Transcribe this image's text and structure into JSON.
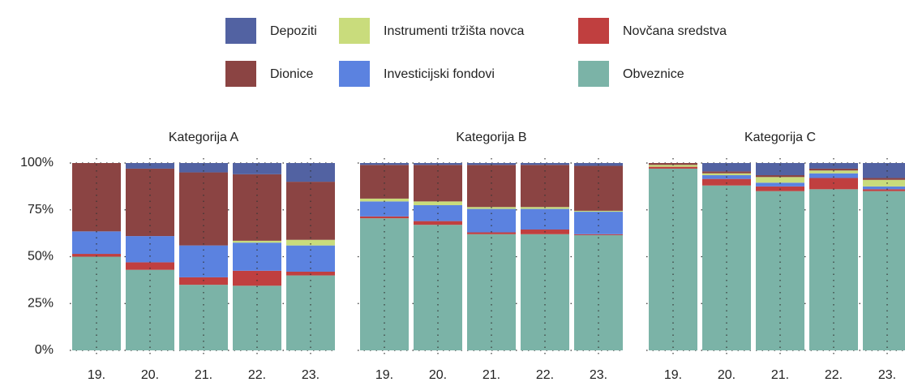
{
  "chart_data": [
    {
      "type": "bar",
      "title": "Kategorija A",
      "categories": [
        "19.",
        "20.",
        "21.",
        "22.",
        "23."
      ],
      "ylim": [
        0,
        100
      ],
      "yticks": [
        {
          "value": 0,
          "label": "0%"
        },
        {
          "value": 25,
          "label": "25%"
        },
        {
          "value": 50,
          "label": "50%"
        },
        {
          "value": 75,
          "label": "75%"
        },
        {
          "value": 100,
          "label": "100%"
        }
      ],
      "grid": true,
      "series": [
        {
          "name": "Depoziti",
          "color": "#5262a2",
          "values": [
            0,
            3,
            5,
            6,
            10
          ]
        },
        {
          "name": "Dionice",
          "color": "#8b4443",
          "values": [
            36.5,
            36,
            39,
            35.5,
            31
          ]
        },
        {
          "name": "Instrumenti tržišta novca",
          "color": "#c9dc7c",
          "values": [
            0,
            0,
            0,
            1,
            3
          ]
        },
        {
          "name": "Investicijski fondovi",
          "color": "#5b82e0",
          "values": [
            12,
            14,
            17,
            15,
            14
          ]
        },
        {
          "name": "Novčana sredstva",
          "color": "#c03f3f",
          "values": [
            1.5,
            4,
            4,
            8,
            2
          ]
        },
        {
          "name": "Obveznice",
          "color": "#7bb3a7",
          "values": [
            50,
            43,
            35,
            34.5,
            40
          ]
        }
      ]
    },
    {
      "type": "bar",
      "title": "Kategorija B",
      "categories": [
        "19.",
        "20.",
        "21.",
        "22.",
        "23."
      ],
      "ylim": [
        0,
        100
      ],
      "grid": true,
      "series": [
        {
          "name": "Depoziti",
          "color": "#5262a2",
          "values": [
            1,
            1,
            1,
            1,
            1.5
          ]
        },
        {
          "name": "Dionice",
          "color": "#8b4443",
          "values": [
            18,
            19.5,
            22.5,
            22.5,
            24
          ]
        },
        {
          "name": "Instrumenti tržišta novca",
          "color": "#c9dc7c",
          "values": [
            1.5,
            2,
            1,
            1,
            0.5
          ]
        },
        {
          "name": "Investicijski fondovi",
          "color": "#5b82e0",
          "values": [
            8,
            8.5,
            12.5,
            11,
            12
          ]
        },
        {
          "name": "Novčana sredstva",
          "color": "#c03f3f",
          "values": [
            1,
            2,
            1,
            2.5,
            0.5
          ]
        },
        {
          "name": "Obveznice",
          "color": "#7bb3a7",
          "values": [
            70.5,
            67,
            62,
            62,
            61.5
          ]
        }
      ]
    },
    {
      "type": "bar",
      "title": "Kategorija C",
      "categories": [
        "19.",
        "20.",
        "21.",
        "22.",
        "23."
      ],
      "ylim": [
        0,
        100
      ],
      "grid": true,
      "series": [
        {
          "name": "Depoziti",
          "color": "#5262a2",
          "values": [
            0,
            4.5,
            6.5,
            3,
            8
          ]
        },
        {
          "name": "Dionice",
          "color": "#8b4443",
          "values": [
            1,
            1,
            1,
            1,
            1
          ]
        },
        {
          "name": "Instrumenti tržišta novca",
          "color": "#c9dc7c",
          "values": [
            1,
            1,
            3,
            1.5,
            3.5
          ]
        },
        {
          "name": "Investicijski fondovi",
          "color": "#5b82e0",
          "values": [
            0,
            2,
            2,
            2.5,
            1.5
          ]
        },
        {
          "name": "Novčana sredstva",
          "color": "#c03f3f",
          "values": [
            1,
            3.5,
            2.5,
            6,
            1
          ]
        },
        {
          "name": "Obveznice",
          "color": "#7bb3a7",
          "values": [
            97,
            88,
            85,
            86,
            85
          ]
        }
      ]
    }
  ]
}
